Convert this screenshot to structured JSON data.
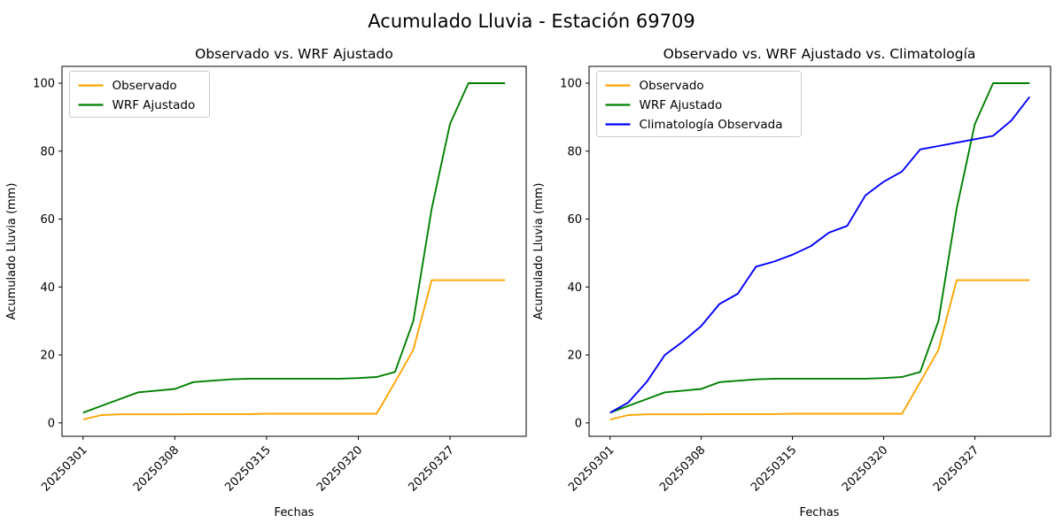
{
  "figure": {
    "suptitle": "Acumulado Lluvia - Estación 69709",
    "background_color": "#ffffff",
    "text_color": "#000000"
  },
  "chart_data": [
    {
      "type": "line",
      "title": "Observado vs. WRF Ajustado",
      "xlabel": "Fechas",
      "ylabel": "Acumulado Lluvia (mm)",
      "grid": false,
      "legend_position": "upper left",
      "yticks": [
        0,
        20,
        40,
        60,
        80,
        100
      ],
      "ylim_data": [
        0,
        100
      ],
      "n_points": 24,
      "x_tick_positions": [
        0,
        5,
        10,
        15,
        20
      ],
      "x_tick_labels": [
        "20250301",
        "20250308",
        "20250315",
        "20250320",
        "20250327"
      ],
      "series": [
        {
          "name": "Observado",
          "color": "#FFA500",
          "values": [
            1,
            2.3,
            2.5,
            2.5,
            2.5,
            2.5,
            2.6,
            2.6,
            2.6,
            2.6,
            2.7,
            2.7,
            2.7,
            2.7,
            2.7,
            2.7,
            2.7,
            12,
            21.5,
            42,
            42,
            42,
            42,
            42
          ]
        },
        {
          "name": "WRF Ajustado",
          "color": "#008000",
          "values": [
            3,
            5,
            7,
            9,
            9.5,
            10,
            12,
            12.4,
            12.8,
            13,
            13,
            13,
            13,
            13,
            13,
            13.2,
            13.5,
            15,
            30,
            63,
            88,
            100,
            100,
            100
          ]
        }
      ]
    },
    {
      "type": "line",
      "title": "Observado vs. WRF Ajustado vs. Climatología",
      "xlabel": "Fechas",
      "ylabel": "Acumulado Lluvia (mm)",
      "grid": false,
      "legend_position": "upper left",
      "yticks": [
        0,
        20,
        40,
        60,
        80,
        100
      ],
      "ylim_data": [
        0,
        100
      ],
      "n_points": 24,
      "x_tick_positions": [
        0,
        5,
        10,
        15,
        20
      ],
      "x_tick_labels": [
        "20250301",
        "20250308",
        "20250315",
        "20250320",
        "20250327"
      ],
      "series": [
        {
          "name": "Observado",
          "color": "#FFA500",
          "values": [
            1,
            2.3,
            2.5,
            2.5,
            2.5,
            2.5,
            2.6,
            2.6,
            2.6,
            2.6,
            2.7,
            2.7,
            2.7,
            2.7,
            2.7,
            2.7,
            2.7,
            12,
            21.5,
            42,
            42,
            42,
            42,
            42
          ]
        },
        {
          "name": "WRF Ajustado",
          "color": "#008000",
          "values": [
            3,
            5,
            7,
            9,
            9.5,
            10,
            12,
            12.4,
            12.8,
            13,
            13,
            13,
            13,
            13,
            13,
            13.2,
            13.5,
            15,
            30,
            63,
            88,
            100,
            100,
            100
          ]
        },
        {
          "name": "Climatología Observada",
          "color": "#0000FF",
          "values": [
            3,
            6,
            12,
            20,
            24,
            28.5,
            35,
            38,
            46,
            47.5,
            49.5,
            52,
            56,
            58,
            67,
            71,
            74,
            80.5,
            81.5,
            82.5,
            83.5,
            84.5,
            89,
            96
          ]
        }
      ]
    }
  ]
}
